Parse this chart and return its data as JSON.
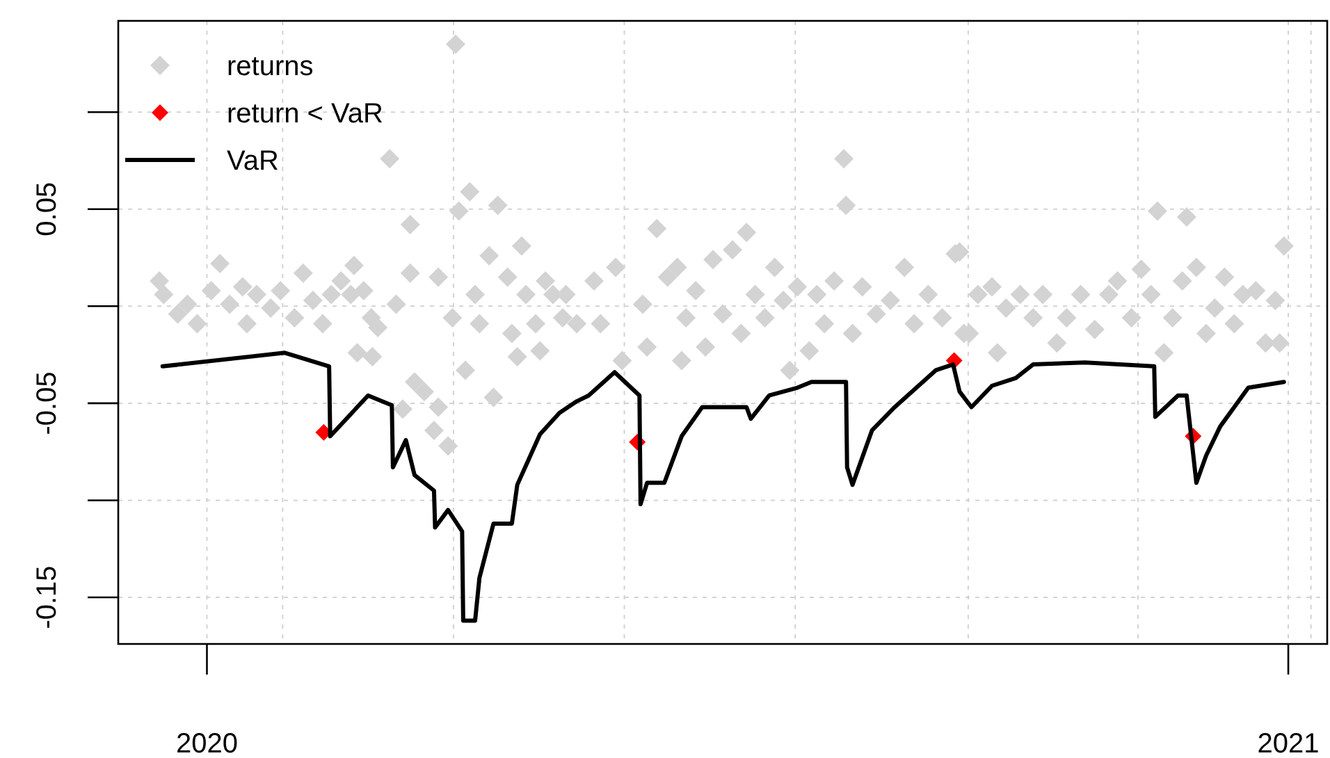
{
  "chart_data": {
    "type": "scatter",
    "legend": "top left",
    "grid": true,
    "xlim": [
      2019.918,
      2021.036
    ],
    "xticks": [
      2020,
      {
        "value": 2020.07,
        "label": null
      },
      {
        "value": 2020.228,
        "label": null
      },
      {
        "value": 2020.386,
        "label": null
      },
      {
        "value": 2020.544,
        "label": null
      },
      {
        "value": 2020.704,
        "label": null
      },
      {
        "value": 2020.861,
        "label": null
      },
      {
        "value": 2021.021,
        "label": null
      },
      2021
    ],
    "ylim": [
      -0.174,
      0.147
    ],
    "yticks": [
      {
        "value": 0.1,
        "label": null
      },
      0.05,
      {
        "value": 0,
        "label": null
      },
      -0.05,
      {
        "value": -0.1,
        "label": null
      },
      -0.15
    ],
    "series": [
      {
        "name": "returns",
        "marker": "diamond",
        "color": "#d3d3d3",
        "x": [
          2019.956,
          2019.96,
          2019.973,
          2019.982,
          2019.991,
          2020.004,
          2020.012,
          2020.021,
          2020.033,
          2020.037,
          2020.046,
          2020.059,
          2020.068,
          2020.081,
          2020.089,
          2020.098,
          2020.107,
          2020.115,
          2020.124,
          2020.133,
          2020.136,
          2020.145,
          2020.152,
          2020.139,
          2020.153,
          2020.158,
          2020.169,
          2020.175,
          2020.188,
          2020.188,
          2020.192,
          2020.181,
          2020.201,
          2020.21,
          2020.214,
          2020.223,
          2020.214,
          2020.227,
          2020.23,
          2020.233,
          2020.243,
          2020.239,
          2020.248,
          2020.252,
          2020.261,
          2020.269,
          2020.265,
          2020.278,
          2020.282,
          2020.291,
          2020.287,
          2020.295,
          2020.304,
          2020.308,
          2020.313,
          2020.32,
          2020.329,
          2020.332,
          2020.342,
          2020.358,
          2020.364,
          2020.378,
          2020.384,
          2020.403,
          2020.407,
          2020.416,
          2020.426,
          2020.435,
          2020.439,
          2020.443,
          2020.452,
          2020.461,
          2020.468,
          2020.477,
          2020.486,
          2020.494,
          2020.499,
          2020.507,
          2020.516,
          2020.525,
          2020.533,
          2020.539,
          2020.546,
          2020.557,
          2020.564,
          2020.571,
          2020.58,
          2020.589,
          2020.591,
          2020.597,
          2020.606,
          2020.619,
          2020.632,
          2020.645,
          2020.654,
          2020.667,
          2020.68,
          2020.692,
          2020.7,
          2020.696,
          2020.705,
          2020.713,
          2020.726,
          2020.731,
          2020.739,
          2020.752,
          2020.764,
          2020.773,
          2020.786,
          2020.795,
          2020.808,
          2020.821,
          2020.834,
          2020.842,
          2020.855,
          2020.864,
          2020.873,
          2020.879,
          2020.885,
          2020.893,
          2020.902,
          2020.906,
          2020.915,
          2020.924,
          2020.932,
          2020.941,
          2020.95,
          2020.958,
          2020.97,
          2020.979,
          2020.988,
          2020.992,
          2020.996
        ],
        "values": [
          0.013,
          0.006,
          -0.004,
          0.001,
          -0.009,
          0.008,
          0.022,
          0.001,
          0.01,
          -0.009,
          0.006,
          -0.001,
          0.008,
          -0.006,
          0.017,
          0.003,
          -0.009,
          0.006,
          0.013,
          0.006,
          0.021,
          0.008,
          -0.006,
          -0.024,
          -0.026,
          -0.011,
          0.076,
          0.001,
          0.042,
          0.017,
          -0.039,
          -0.053,
          -0.044,
          -0.064,
          0.015,
          -0.072,
          -0.052,
          -0.006,
          0.135,
          0.049,
          0.059,
          -0.033,
          0.006,
          -0.009,
          0.026,
          0.052,
          -0.047,
          0.015,
          -0.014,
          0.031,
          -0.026,
          0.006,
          -0.009,
          -0.023,
          0.013,
          0.006,
          -0.006,
          0.006,
          -0.009,
          0.013,
          -0.009,
          0.02,
          -0.028,
          0.001,
          -0.021,
          0.04,
          0.015,
          0.02,
          -0.028,
          -0.006,
          0.008,
          -0.021,
          0.024,
          -0.004,
          0.029,
          -0.014,
          0.038,
          0.006,
          -0.006,
          0.02,
          0.003,
          -0.033,
          0.01,
          -0.023,
          0.006,
          -0.009,
          0.013,
          0.076,
          0.052,
          -0.014,
          0.01,
          -0.004,
          0.003,
          0.02,
          -0.009,
          0.006,
          -0.006,
          0.027,
          -0.014,
          0.028,
          -0.014,
          0.006,
          0.01,
          -0.024,
          -0.001,
          0.006,
          -0.006,
          0.006,
          -0.019,
          -0.006,
          0.006,
          -0.012,
          0.006,
          0.013,
          -0.006,
          0.019,
          0.006,
          0.049,
          -0.024,
          -0.006,
          0.013,
          0.046,
          0.02,
          -0.014,
          -0.001,
          0.015,
          -0.009,
          0.006,
          0.008,
          -0.019,
          0.003,
          -0.019,
          0.031
        ]
      },
      {
        "name": "return < VaR",
        "marker": "diamond",
        "color": "#ff0000",
        "x": [
          2020.108,
          2020.398,
          2020.691,
          2020.912
        ],
        "values": [
          -0.065,
          -0.07,
          -0.028,
          -0.067
        ]
      },
      {
        "name": "VaR",
        "type": "line",
        "line_style": "solid",
        "color": "#000000",
        "x": [
          2019.959,
          2020.072,
          2020.113,
          2020.114,
          2020.149,
          2020.171,
          2020.172,
          2020.184,
          2020.192,
          2020.21,
          2020.211,
          2020.223,
          2020.236,
          2020.237,
          2020.248,
          2020.252,
          2020.265,
          2020.282,
          2020.287,
          2020.308,
          2020.326,
          2020.342,
          2020.353,
          2020.377,
          2020.4,
          2020.401,
          2020.407,
          2020.423,
          2020.439,
          2020.458,
          2020.499,
          2020.503,
          2020.52,
          2020.546,
          2020.559,
          2020.591,
          2020.592,
          2020.597,
          2020.615,
          2020.636,
          2020.674,
          2020.69,
          2020.696,
          2020.707,
          2020.726,
          2020.748,
          2020.764,
          2020.812,
          2020.876,
          2020.877,
          2020.898,
          2020.906,
          2020.915,
          2020.924,
          2020.937,
          2020.963,
          2020.996
        ],
        "values": [
          -0.031,
          -0.024,
          -0.031,
          -0.067,
          -0.046,
          -0.051,
          -0.083,
          -0.069,
          -0.087,
          -0.095,
          -0.114,
          -0.105,
          -0.116,
          -0.162,
          -0.162,
          -0.14,
          -0.112,
          -0.112,
          -0.092,
          -0.066,
          -0.055,
          -0.049,
          -0.046,
          -0.034,
          -0.046,
          -0.102,
          -0.091,
          -0.091,
          -0.067,
          -0.052,
          -0.052,
          -0.058,
          -0.046,
          -0.042,
          -0.039,
          -0.039,
          -0.083,
          -0.092,
          -0.064,
          -0.052,
          -0.033,
          -0.03,
          -0.044,
          -0.052,
          -0.041,
          -0.037,
          -0.03,
          -0.029,
          -0.031,
          -0.057,
          -0.046,
          -0.046,
          -0.091,
          -0.077,
          -0.062,
          -0.042,
          -0.039
        ]
      }
    ]
  }
}
